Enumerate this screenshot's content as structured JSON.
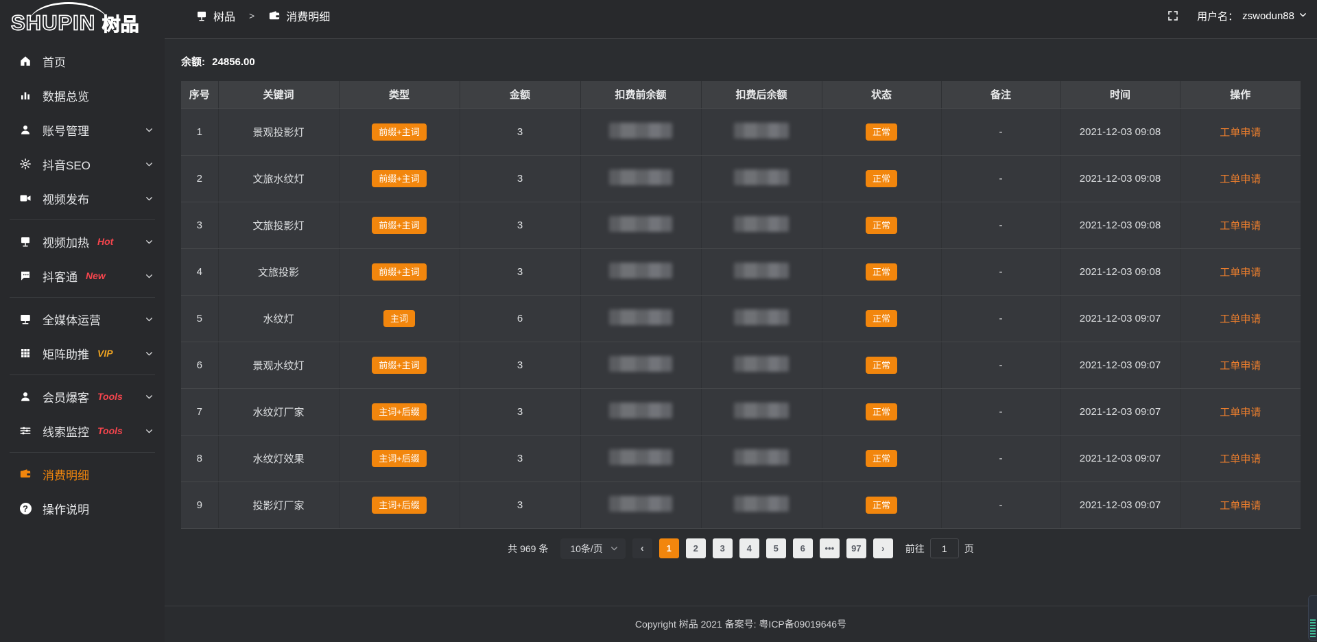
{
  "logo": {
    "en": "SHUPIN",
    "cn": "树品"
  },
  "sidebar": {
    "groups": [
      [
        {
          "label": "首页",
          "icon": "home",
          "arrow": false
        },
        {
          "label": "数据总览",
          "icon": "chart",
          "arrow": false
        },
        {
          "label": "账号管理",
          "icon": "user",
          "arrow": true
        },
        {
          "label": "抖音SEO",
          "icon": "gear",
          "arrow": true
        },
        {
          "label": "视频发布",
          "icon": "video",
          "arrow": true
        }
      ],
      [
        {
          "label": "视频加热",
          "icon": "screen-small",
          "arrow": true,
          "tag": "Hot",
          "tag_color": "#f5454d"
        },
        {
          "label": "抖客通",
          "icon": "chat",
          "arrow": true,
          "tag": "New",
          "tag_color": "#f5454d"
        }
      ],
      [
        {
          "label": "全媒体运营",
          "icon": "monitor",
          "arrow": true
        },
        {
          "label": "矩阵助推",
          "icon": "grid",
          "arrow": true,
          "tag": "VIP",
          "tag_color": "#eea321"
        }
      ],
      [
        {
          "label": "会员爆客",
          "icon": "user",
          "arrow": true,
          "tag": "Tools",
          "tag_color": "#f5454d"
        },
        {
          "label": "线索监控",
          "icon": "sliders",
          "arrow": true,
          "tag": "Tools",
          "tag_color": "#f5454d"
        }
      ],
      [
        {
          "label": "消费明细",
          "icon": "wallet",
          "arrow": false,
          "active": true
        },
        {
          "label": "操作说明",
          "icon": "question",
          "arrow": false
        }
      ]
    ]
  },
  "topbar": {
    "breadcrumb": [
      {
        "icon": "screen-small",
        "label": "树品"
      },
      {
        "icon": "wallet",
        "label": "消费明细"
      }
    ],
    "separator": ">",
    "user_label": "用户名：",
    "username": "zswodun88"
  },
  "balance": {
    "label": "余额:",
    "value": "24856.00"
  },
  "table": {
    "columns": [
      "序号",
      "关键词",
      "类型",
      "金额",
      "扣费前余额",
      "扣费后余额",
      "状态",
      "备注",
      "时间",
      "操作"
    ],
    "rows": [
      {
        "no": "1",
        "keyword": "景观投影灯",
        "type": "前缀+主词",
        "amount": "3",
        "balance_before_redacted": true,
        "balance_after_redacted": true,
        "status": "正常",
        "remark": "-",
        "time": "2021-12-03 09:08",
        "action": "工单申请"
      },
      {
        "no": "2",
        "keyword": "文旅水纹灯",
        "type": "前缀+主词",
        "amount": "3",
        "balance_before_redacted": true,
        "balance_after_redacted": true,
        "status": "正常",
        "remark": "-",
        "time": "2021-12-03 09:08",
        "action": "工单申请"
      },
      {
        "no": "3",
        "keyword": "文旅投影灯",
        "type": "前缀+主词",
        "amount": "3",
        "balance_before_redacted": true,
        "balance_after_redacted": true,
        "status": "正常",
        "remark": "-",
        "time": "2021-12-03 09:08",
        "action": "工单申请"
      },
      {
        "no": "4",
        "keyword": "文旅投影",
        "type": "前缀+主词",
        "amount": "3",
        "balance_before_redacted": true,
        "balance_after_redacted": true,
        "status": "正常",
        "remark": "-",
        "time": "2021-12-03 09:08",
        "action": "工单申请"
      },
      {
        "no": "5",
        "keyword": "水纹灯",
        "type": "主词",
        "amount": "6",
        "balance_before_redacted": true,
        "balance_after_redacted": true,
        "status": "正常",
        "remark": "-",
        "time": "2021-12-03 09:07",
        "action": "工单申请"
      },
      {
        "no": "6",
        "keyword": "景观水纹灯",
        "type": "前缀+主词",
        "amount": "3",
        "balance_before_redacted": true,
        "balance_after_redacted": true,
        "status": "正常",
        "remark": "-",
        "time": "2021-12-03 09:07",
        "action": "工单申请"
      },
      {
        "no": "7",
        "keyword": "水纹灯厂家",
        "type": "主词+后缀",
        "amount": "3",
        "balance_before_redacted": true,
        "balance_after_redacted": true,
        "status": "正常",
        "remark": "-",
        "time": "2021-12-03 09:07",
        "action": "工单申请"
      },
      {
        "no": "8",
        "keyword": "水纹灯效果",
        "type": "主词+后缀",
        "amount": "3",
        "balance_before_redacted": true,
        "balance_after_redacted": true,
        "status": "正常",
        "remark": "-",
        "time": "2021-12-03 09:07",
        "action": "工单申请"
      },
      {
        "no": "9",
        "keyword": "投影灯厂家",
        "type": "主词+后缀",
        "amount": "3",
        "balance_before_redacted": true,
        "balance_after_redacted": true,
        "status": "正常",
        "remark": "-",
        "time": "2021-12-03 09:07",
        "action": "工单申请"
      }
    ]
  },
  "pagination": {
    "total_text": "共 969 条",
    "page_size": "10条/页",
    "prev_icon": "‹",
    "next_icon": "›",
    "pages": [
      "1",
      "2",
      "3",
      "4",
      "5",
      "6",
      "•••",
      "97"
    ],
    "active_page": "1",
    "goto_label": "前往",
    "goto_value": "1",
    "goto_suffix": "页"
  },
  "footer": {
    "copyright": "Copyright 树品 2021 备案号: 粤ICP备09019646号"
  },
  "colors": {
    "accent": "#f2860d",
    "link": "#ee7f2d",
    "hot_red": "#f5454d",
    "vip_gold": "#eea321"
  }
}
